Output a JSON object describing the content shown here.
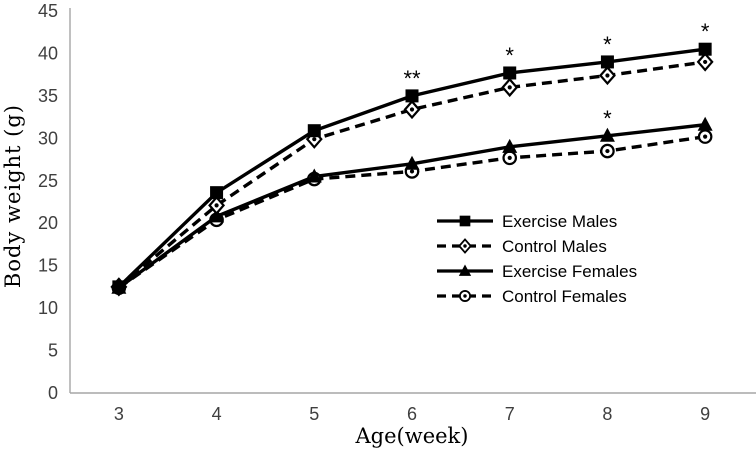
{
  "chart_data": {
    "type": "line",
    "title": "",
    "xlabel": "Age(week)",
    "ylabel": "Body weight (g)",
    "x": [
      3,
      4,
      5,
      6,
      7,
      8,
      9
    ],
    "xlim": [
      2.5,
      9.5
    ],
    "ylim": [
      0,
      45
    ],
    "ytick_step": 5,
    "grid": false,
    "legend_position": "inside-right",
    "series": [
      {
        "name": "Exercise Males",
        "line": "solid",
        "marker": "filled-square",
        "values": [
          12.5,
          23.6,
          30.9,
          35.0,
          37.7,
          39.0,
          40.5
        ]
      },
      {
        "name": "Control Males",
        "line": "dashed",
        "marker": "open-diamond",
        "values": [
          12.5,
          22.1,
          29.9,
          33.4,
          36.0,
          37.4,
          39.0
        ]
      },
      {
        "name": "Exercise Females",
        "line": "solid",
        "marker": "filled-triangle",
        "values": [
          12.4,
          20.8,
          25.5,
          27.0,
          29.0,
          30.3,
          31.6
        ]
      },
      {
        "name": "Control Females",
        "line": "dashed",
        "marker": "open-circle",
        "values": [
          12.4,
          20.4,
          25.2,
          26.1,
          27.7,
          28.5,
          30.2
        ]
      }
    ],
    "annotations": [
      {
        "series": 0,
        "x": 6,
        "text": "**"
      },
      {
        "series": 0,
        "x": 7,
        "text": "*"
      },
      {
        "series": 0,
        "x": 8,
        "text": "*"
      },
      {
        "series": 0,
        "x": 9,
        "text": "*"
      },
      {
        "series": 2,
        "x": 8,
        "text": "*"
      }
    ],
    "colors": {
      "line": "#000000",
      "axis": "#a6a6a6",
      "tick_text": "#3f3f3f",
      "background": "#ffffff"
    }
  }
}
